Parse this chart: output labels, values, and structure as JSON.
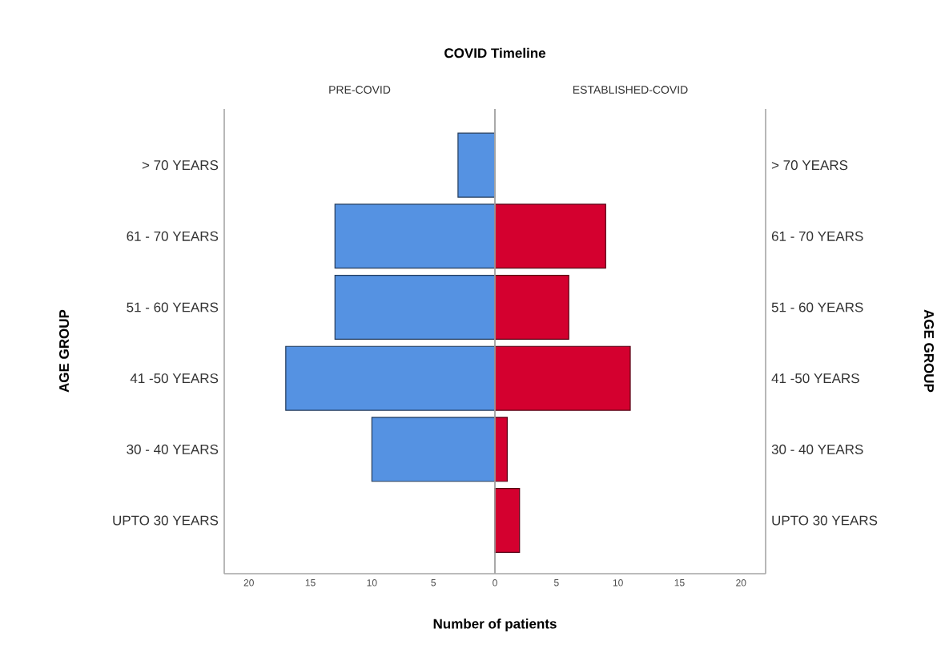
{
  "chart_data": [
    {
      "type": "bar",
      "orientation": "horizontal",
      "title": "COVID Timeline",
      "subtitle": "PRE-COVID",
      "xlabel": "Number of patients",
      "ylabel": "AGE GROUP",
      "categories": [
        "> 70 YEARS",
        "61 - 70 YEARS",
        "51 - 60 YEARS",
        "41 -50 YEARS",
        "30 - 40 YEARS",
        "UPTO 30 YEARS"
      ],
      "values": [
        3,
        13,
        13,
        17,
        10,
        0
      ],
      "color": "#5592e2",
      "xlim": [
        22,
        0
      ],
      "xticks": [
        20,
        15,
        10,
        5,
        0
      ]
    },
    {
      "type": "bar",
      "orientation": "horizontal",
      "subtitle": "ESTABLISHED-COVID",
      "ylabel": "AGE GROUP",
      "categories": [
        "> 70 YEARS",
        "61 - 70 YEARS",
        "51 - 60 YEARS",
        "41 -50 YEARS",
        "30 - 40 YEARS",
        "UPTO 30 YEARS"
      ],
      "values": [
        0,
        9,
        6,
        11,
        1,
        2
      ],
      "color": "#d4002f",
      "xlim": [
        0,
        22
      ],
      "xticks": [
        {
          "value": 0,
          "label": null
        },
        5,
        10,
        15,
        20
      ]
    }
  ]
}
